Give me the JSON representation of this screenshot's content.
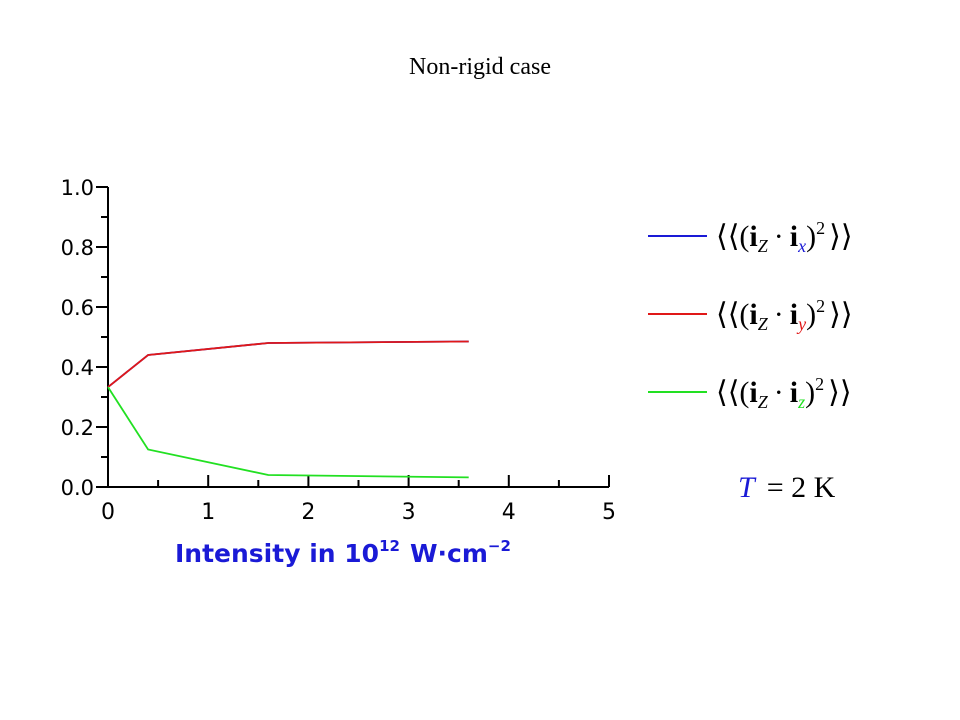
{
  "chart_data": {
    "type": "line",
    "title": "Non-rigid case",
    "xlabel": {
      "text": "Intensity in 10",
      "superscript": "12",
      "unit": "W·cm",
      "unit_superscript": "−2"
    },
    "ylabel": "",
    "xlim": [
      0,
      5
    ],
    "ylim": [
      0,
      1.0
    ],
    "xticks": [
      0,
      1,
      2,
      3,
      4,
      5
    ],
    "yticks": [
      "0.0",
      "0.2",
      "0.4",
      "0.6",
      "0.8",
      "1.0"
    ],
    "grid": false,
    "legend_placement": "right",
    "x": [
      0,
      0.4,
      1.6,
      3.6
    ],
    "series": [
      {
        "name": "⟨⟨(i_Z · i_x)²⟩⟩",
        "sub": "x",
        "color": "#1a1ad6",
        "values": [
          0.333,
          0.44,
          0.48,
          0.485
        ]
      },
      {
        "name": "⟨⟨(i_Z · i_y)²⟩⟩",
        "sub": "y",
        "color": "#e01818",
        "values": [
          0.333,
          0.44,
          0.48,
          0.485
        ]
      },
      {
        "name": "⟨⟨(i_Z · i_z)²⟩⟩",
        "sub": "z",
        "color": "#22e022",
        "values": [
          0.333,
          0.125,
          0.04,
          0.032
        ]
      }
    ],
    "annotation": {
      "symbol": "T",
      "rest": "= 2 K"
    },
    "colors": {
      "axis": "#000000",
      "label": "#1a1ad6"
    }
  }
}
